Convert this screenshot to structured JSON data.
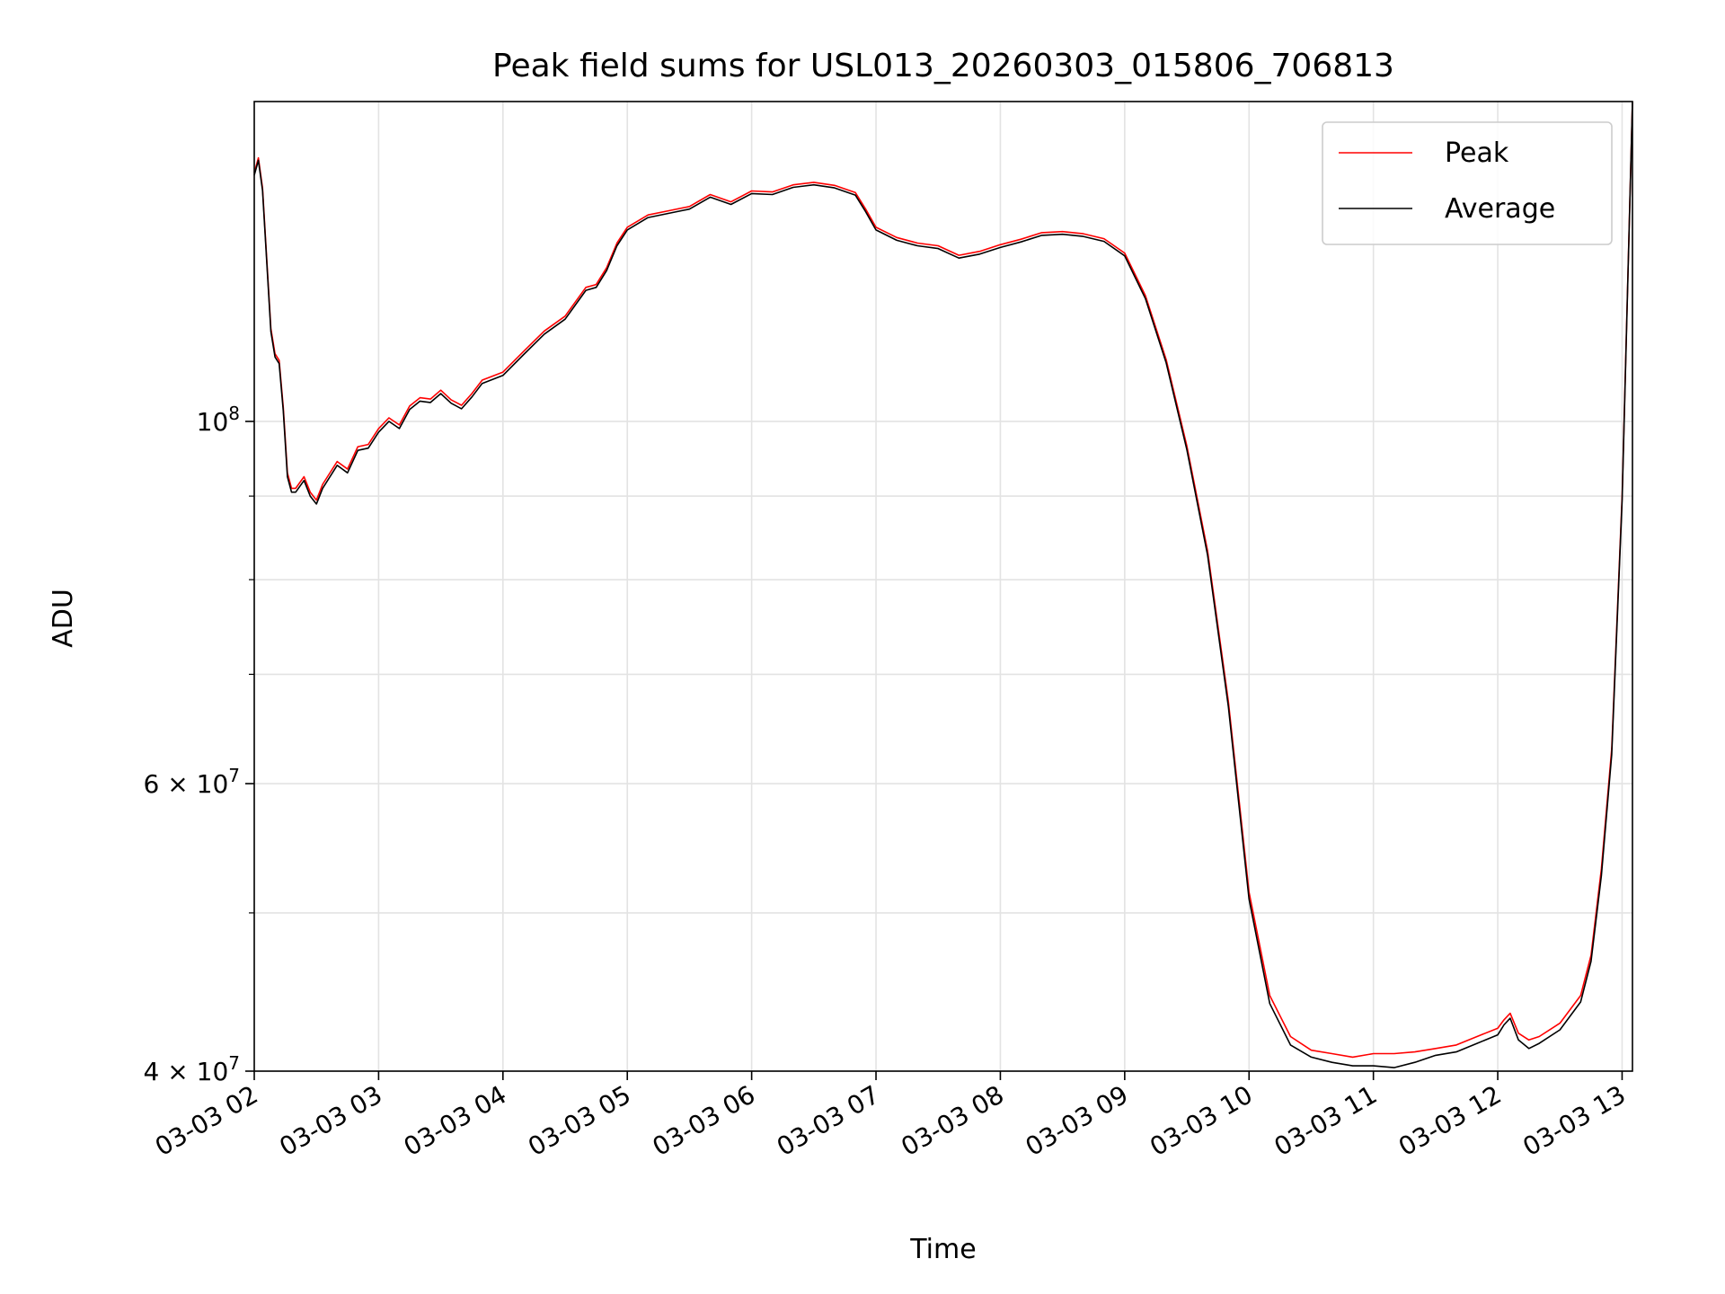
{
  "chart_data": {
    "type": "line",
    "title": "Peak field sums for USL013_20260303_015806_706813",
    "xlabel": "Time",
    "ylabel": "ADU",
    "y_scale": "log",
    "ylim": [
      40000000,
      157000000
    ],
    "xlim": [
      "03-03 02:00",
      "03-03 13:05"
    ],
    "grid": true,
    "legend": "top-right",
    "x_ticks": [
      "03-03 02",
      "03-03 03",
      "03-03 04",
      "03-03 05",
      "03-03 06",
      "03-03 07",
      "03-03 08",
      "03-03 09",
      "03-03 10",
      "03-03 11",
      "03-03 12",
      "03-03 13"
    ],
    "y_ticks": [
      {
        "value": 40000000,
        "mantissa": "4",
        "exponent": "7"
      },
      {
        "value": 60000000,
        "mantissa": "6",
        "exponent": "7"
      },
      {
        "value": 100000000,
        "mantissa": "",
        "exponent": "8"
      }
    ],
    "x_unit_note": "",
    "series": [
      {
        "name": "Peak",
        "color": "#ff0000",
        "x": [
          "03-03 02:00",
          "03-03 02:02",
          "03-03 02:04",
          "03-03 02:06",
          "03-03 02:08",
          "03-03 02:10",
          "03-03 02:12",
          "03-03 02:14",
          "03-03 02:16",
          "03-03 02:18",
          "03-03 02:20",
          "03-03 02:24",
          "03-03 02:27",
          "03-03 02:30",
          "03-03 02:33",
          "03-03 02:40",
          "03-03 02:45",
          "03-03 02:50",
          "03-03 02:55",
          "03-03 03:00",
          "03-03 03:05",
          "03-03 03:10",
          "03-03 03:15",
          "03-03 03:20",
          "03-03 03:25",
          "03-03 03:30",
          "03-03 03:35",
          "03-03 03:40",
          "03-03 03:45",
          "03-03 03:50",
          "03-03 04:00",
          "03-03 04:10",
          "03-03 04:20",
          "03-03 04:30",
          "03-03 04:40",
          "03-03 04:45",
          "03-03 04:50",
          "03-03 04:55",
          "03-03 05:00",
          "03-03 05:10",
          "03-03 05:20",
          "03-03 05:30",
          "03-03 05:40",
          "03-03 05:50",
          "03-03 06:00",
          "03-03 06:10",
          "03-03 06:20",
          "03-03 06:30",
          "03-03 06:40",
          "03-03 06:50",
          "03-03 06:55",
          "03-03 07:00",
          "03-03 07:10",
          "03-03 07:20",
          "03-03 07:30",
          "03-03 07:40",
          "03-03 07:50",
          "03-03 08:00",
          "03-03 08:10",
          "03-03 08:20",
          "03-03 08:30",
          "03-03 08:40",
          "03-03 08:50",
          "03-03 09:00",
          "03-03 09:10",
          "03-03 09:20",
          "03-03 09:30",
          "03-03 09:40",
          "03-03 09:50",
          "03-03 10:00",
          "03-03 10:10",
          "03-03 10:20",
          "03-03 10:30",
          "03-03 10:40",
          "03-03 10:50",
          "03-03 11:00",
          "03-03 11:10",
          "03-03 11:20",
          "03-03 11:30",
          "03-03 11:40",
          "03-03 11:50",
          "03-03 12:00",
          "03-03 12:03",
          "03-03 12:06",
          "03-03 12:10",
          "03-03 12:15",
          "03-03 12:20",
          "03-03 12:30",
          "03-03 12:40",
          "03-03 12:45",
          "03-03 12:50",
          "03-03 12:55",
          "03-03 13:00",
          "03-03 13:05"
        ],
        "values": [
          142000000,
          145000000,
          139000000,
          126000000,
          114000000,
          110000000,
          109000000,
          102000000,
          93000000,
          91000000,
          91000000,
          92500000,
          90500000,
          89500000,
          91500000,
          94500000,
          93500000,
          96500000,
          96800000,
          99000000,
          100500000,
          99500000,
          102200000,
          103400000,
          103200000,
          104500000,
          103100000,
          102300000,
          104000000,
          106000000,
          107200000,
          110400000,
          113600000,
          116000000,
          120800000,
          121300000,
          124200000,
          128600000,
          131500000,
          133800000,
          134600000,
          135400000,
          137700000,
          136300000,
          138400000,
          138200000,
          139600000,
          140100000,
          139500000,
          138100000,
          134900000,
          131500000,
          129600000,
          128600000,
          128100000,
          126400000,
          127100000,
          128300000,
          129300000,
          130500000,
          130700000,
          130300000,
          129400000,
          126800000,
          119400000,
          109100000,
          96600000,
          83300000,
          67400000,
          51500000,
          44500000,
          42000000,
          41200000,
          41000000,
          40800000,
          41000000,
          41000000,
          41100000,
          41300000,
          41500000,
          42000000,
          42500000,
          43000000,
          43400000,
          42200000,
          41800000,
          42000000,
          42800000,
          44500000,
          47100000,
          53200000,
          63000000,
          90000000,
          157000000
        ]
      },
      {
        "name": "Average",
        "color": "#000000",
        "x": [
          "03-03 02:00",
          "03-03 02:02",
          "03-03 02:04",
          "03-03 02:06",
          "03-03 02:08",
          "03-03 02:10",
          "03-03 02:12",
          "03-03 02:14",
          "03-03 02:16",
          "03-03 02:18",
          "03-03 02:20",
          "03-03 02:24",
          "03-03 02:27",
          "03-03 02:30",
          "03-03 02:33",
          "03-03 02:40",
          "03-03 02:45",
          "03-03 02:50",
          "03-03 02:55",
          "03-03 03:00",
          "03-03 03:05",
          "03-03 03:10",
          "03-03 03:15",
          "03-03 03:20",
          "03-03 03:25",
          "03-03 03:30",
          "03-03 03:35",
          "03-03 03:40",
          "03-03 03:45",
          "03-03 03:50",
          "03-03 04:00",
          "03-03 04:10",
          "03-03 04:20",
          "03-03 04:30",
          "03-03 04:40",
          "03-03 04:45",
          "03-03 04:50",
          "03-03 04:55",
          "03-03 05:00",
          "03-03 05:10",
          "03-03 05:20",
          "03-03 05:30",
          "03-03 05:40",
          "03-03 05:50",
          "03-03 06:00",
          "03-03 06:10",
          "03-03 06:20",
          "03-03 06:30",
          "03-03 06:40",
          "03-03 06:50",
          "03-03 06:55",
          "03-03 07:00",
          "03-03 07:10",
          "03-03 07:20",
          "03-03 07:30",
          "03-03 07:40",
          "03-03 07:50",
          "03-03 08:00",
          "03-03 08:10",
          "03-03 08:20",
          "03-03 08:30",
          "03-03 08:40",
          "03-03 08:50",
          "03-03 09:00",
          "03-03 09:10",
          "03-03 09:20",
          "03-03 09:30",
          "03-03 09:40",
          "03-03 09:50",
          "03-03 10:00",
          "03-03 10:10",
          "03-03 10:20",
          "03-03 10:30",
          "03-03 10:40",
          "03-03 10:50",
          "03-03 11:00",
          "03-03 11:10",
          "03-03 11:20",
          "03-03 11:30",
          "03-03 11:40",
          "03-03 11:50",
          "03-03 12:00",
          "03-03 12:03",
          "03-03 12:06",
          "03-03 12:10",
          "03-03 12:15",
          "03-03 12:20",
          "03-03 12:30",
          "03-03 12:40",
          "03-03 12:45",
          "03-03 12:50",
          "03-03 12:55",
          "03-03 13:00",
          "03-03 13:05"
        ],
        "values": [
          141500000,
          144500000,
          138500000,
          125500000,
          113500000,
          109500000,
          108500000,
          101500000,
          92500000,
          90500000,
          90500000,
          92000000,
          90000000,
          89000000,
          91000000,
          94000000,
          93000000,
          96000000,
          96300000,
          98500000,
          100000000,
          99000000,
          101700000,
          102900000,
          102700000,
          104000000,
          102600000,
          101800000,
          103500000,
          105500000,
          106700000,
          109900000,
          113100000,
          115500000,
          120300000,
          120800000,
          123700000,
          128100000,
          131000000,
          133300000,
          134100000,
          134900000,
          137200000,
          135800000,
          137900000,
          137700000,
          139100000,
          139600000,
          139000000,
          137600000,
          134400000,
          131000000,
          129100000,
          128100000,
          127600000,
          125900000,
          126600000,
          127800000,
          128800000,
          130000000,
          130200000,
          129800000,
          128900000,
          126300000,
          118900000,
          108600000,
          96100000,
          82800000,
          66900000,
          51000000,
          44000000,
          41500000,
          40800000,
          40500000,
          40300000,
          40300000,
          40200000,
          40500000,
          40900000,
          41100000,
          41600000,
          42100000,
          42700000,
          43100000,
          41800000,
          41300000,
          41600000,
          42400000,
          44100000,
          46700000,
          52700000,
          62500000,
          89500000,
          157000000
        ]
      }
    ]
  }
}
